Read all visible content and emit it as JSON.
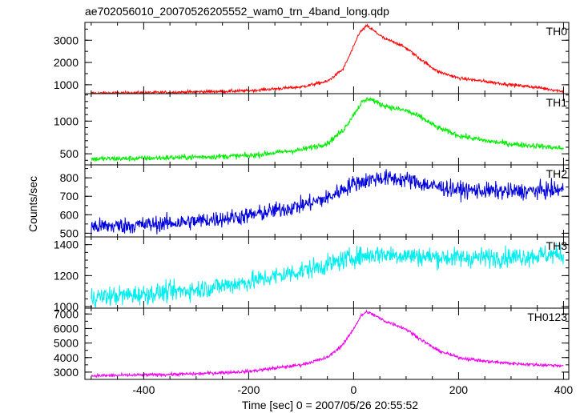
{
  "chart_data": {
    "type": "line",
    "title": "ae702056010_20070526205552_wam0_trn_4band_long.qdp",
    "xlabel": "Time [sec] 0 = 2007/05/26 20:55:52",
    "ylabel": "Counts/sec",
    "xlim": [
      -512,
      410
    ],
    "xticks": [
      -400,
      -200,
      0,
      200,
      400
    ],
    "grid": false,
    "panels": [
      {
        "name": "TH0",
        "color": "#ff0000",
        "ylim": [
          600,
          3800
        ],
        "yticks": [
          1000,
          2000,
          3000
        ],
        "noise": 50,
        "x": [
          -500,
          -400,
          -300,
          -200,
          -100,
          -50,
          -20,
          0,
          10,
          25,
          40,
          60,
          80,
          100,
          130,
          160,
          200,
          250,
          300,
          350,
          400
        ],
        "values": [
          620,
          640,
          680,
          730,
          900,
          1150,
          1700,
          2700,
          3300,
          3650,
          3400,
          3050,
          2900,
          2650,
          2100,
          1600,
          1300,
          1150,
          1000,
          880,
          700
        ]
      },
      {
        "name": "TH1",
        "color": "#00ee00",
        "ylim": [
          330,
          1420
        ],
        "yticks": [
          500,
          1000
        ],
        "noise": 30,
        "x": [
          -500,
          -400,
          -300,
          -200,
          -100,
          -50,
          -20,
          0,
          15,
          30,
          50,
          80,
          100,
          130,
          160,
          200,
          250,
          300,
          350,
          400
        ],
        "values": [
          420,
          430,
          450,
          470,
          560,
          660,
          860,
          1100,
          1280,
          1350,
          1260,
          1190,
          1160,
          1050,
          900,
          780,
          700,
          650,
          620,
          580
        ]
      },
      {
        "name": "TH2",
        "color": "#0000dd",
        "ylim": [
          480,
          870
        ],
        "yticks": [
          500,
          600,
          700,
          800
        ],
        "noise": 32,
        "x": [
          -500,
          -400,
          -300,
          -200,
          -100,
          -50,
          0,
          50,
          100,
          150,
          200,
          300,
          400
        ],
        "values": [
          535,
          545,
          565,
          595,
          650,
          690,
          770,
          800,
          790,
          755,
          735,
          725,
          735
        ]
      },
      {
        "name": "TH3",
        "color": "#00eeee",
        "ylim": [
          990,
          1450
        ],
        "yticks": [
          1000,
          1200,
          1400
        ],
        "noise": 45,
        "x": [
          -500,
          -400,
          -300,
          -200,
          -100,
          -50,
          0,
          50,
          100,
          150,
          200,
          300,
          400
        ],
        "values": [
          1060,
          1080,
          1110,
          1160,
          1230,
          1270,
          1320,
          1340,
          1330,
          1320,
          1315,
          1320,
          1340
        ]
      },
      {
        "name": "TH0123",
        "color": "#ee00ee",
        "ylim": [
          2500,
          7400
        ],
        "yticks": [
          3000,
          4000,
          5000,
          6000,
          7000
        ],
        "noise": 80,
        "x": [
          -500,
          -400,
          -300,
          -200,
          -100,
          -50,
          -20,
          0,
          15,
          25,
          40,
          60,
          80,
          100,
          130,
          160,
          200,
          250,
          300,
          350,
          400
        ],
        "values": [
          2750,
          2800,
          2880,
          3050,
          3500,
          4000,
          4900,
          6000,
          6900,
          7150,
          6900,
          6500,
          6250,
          5950,
          5200,
          4500,
          4000,
          3750,
          3600,
          3500,
          3450
        ]
      }
    ]
  }
}
